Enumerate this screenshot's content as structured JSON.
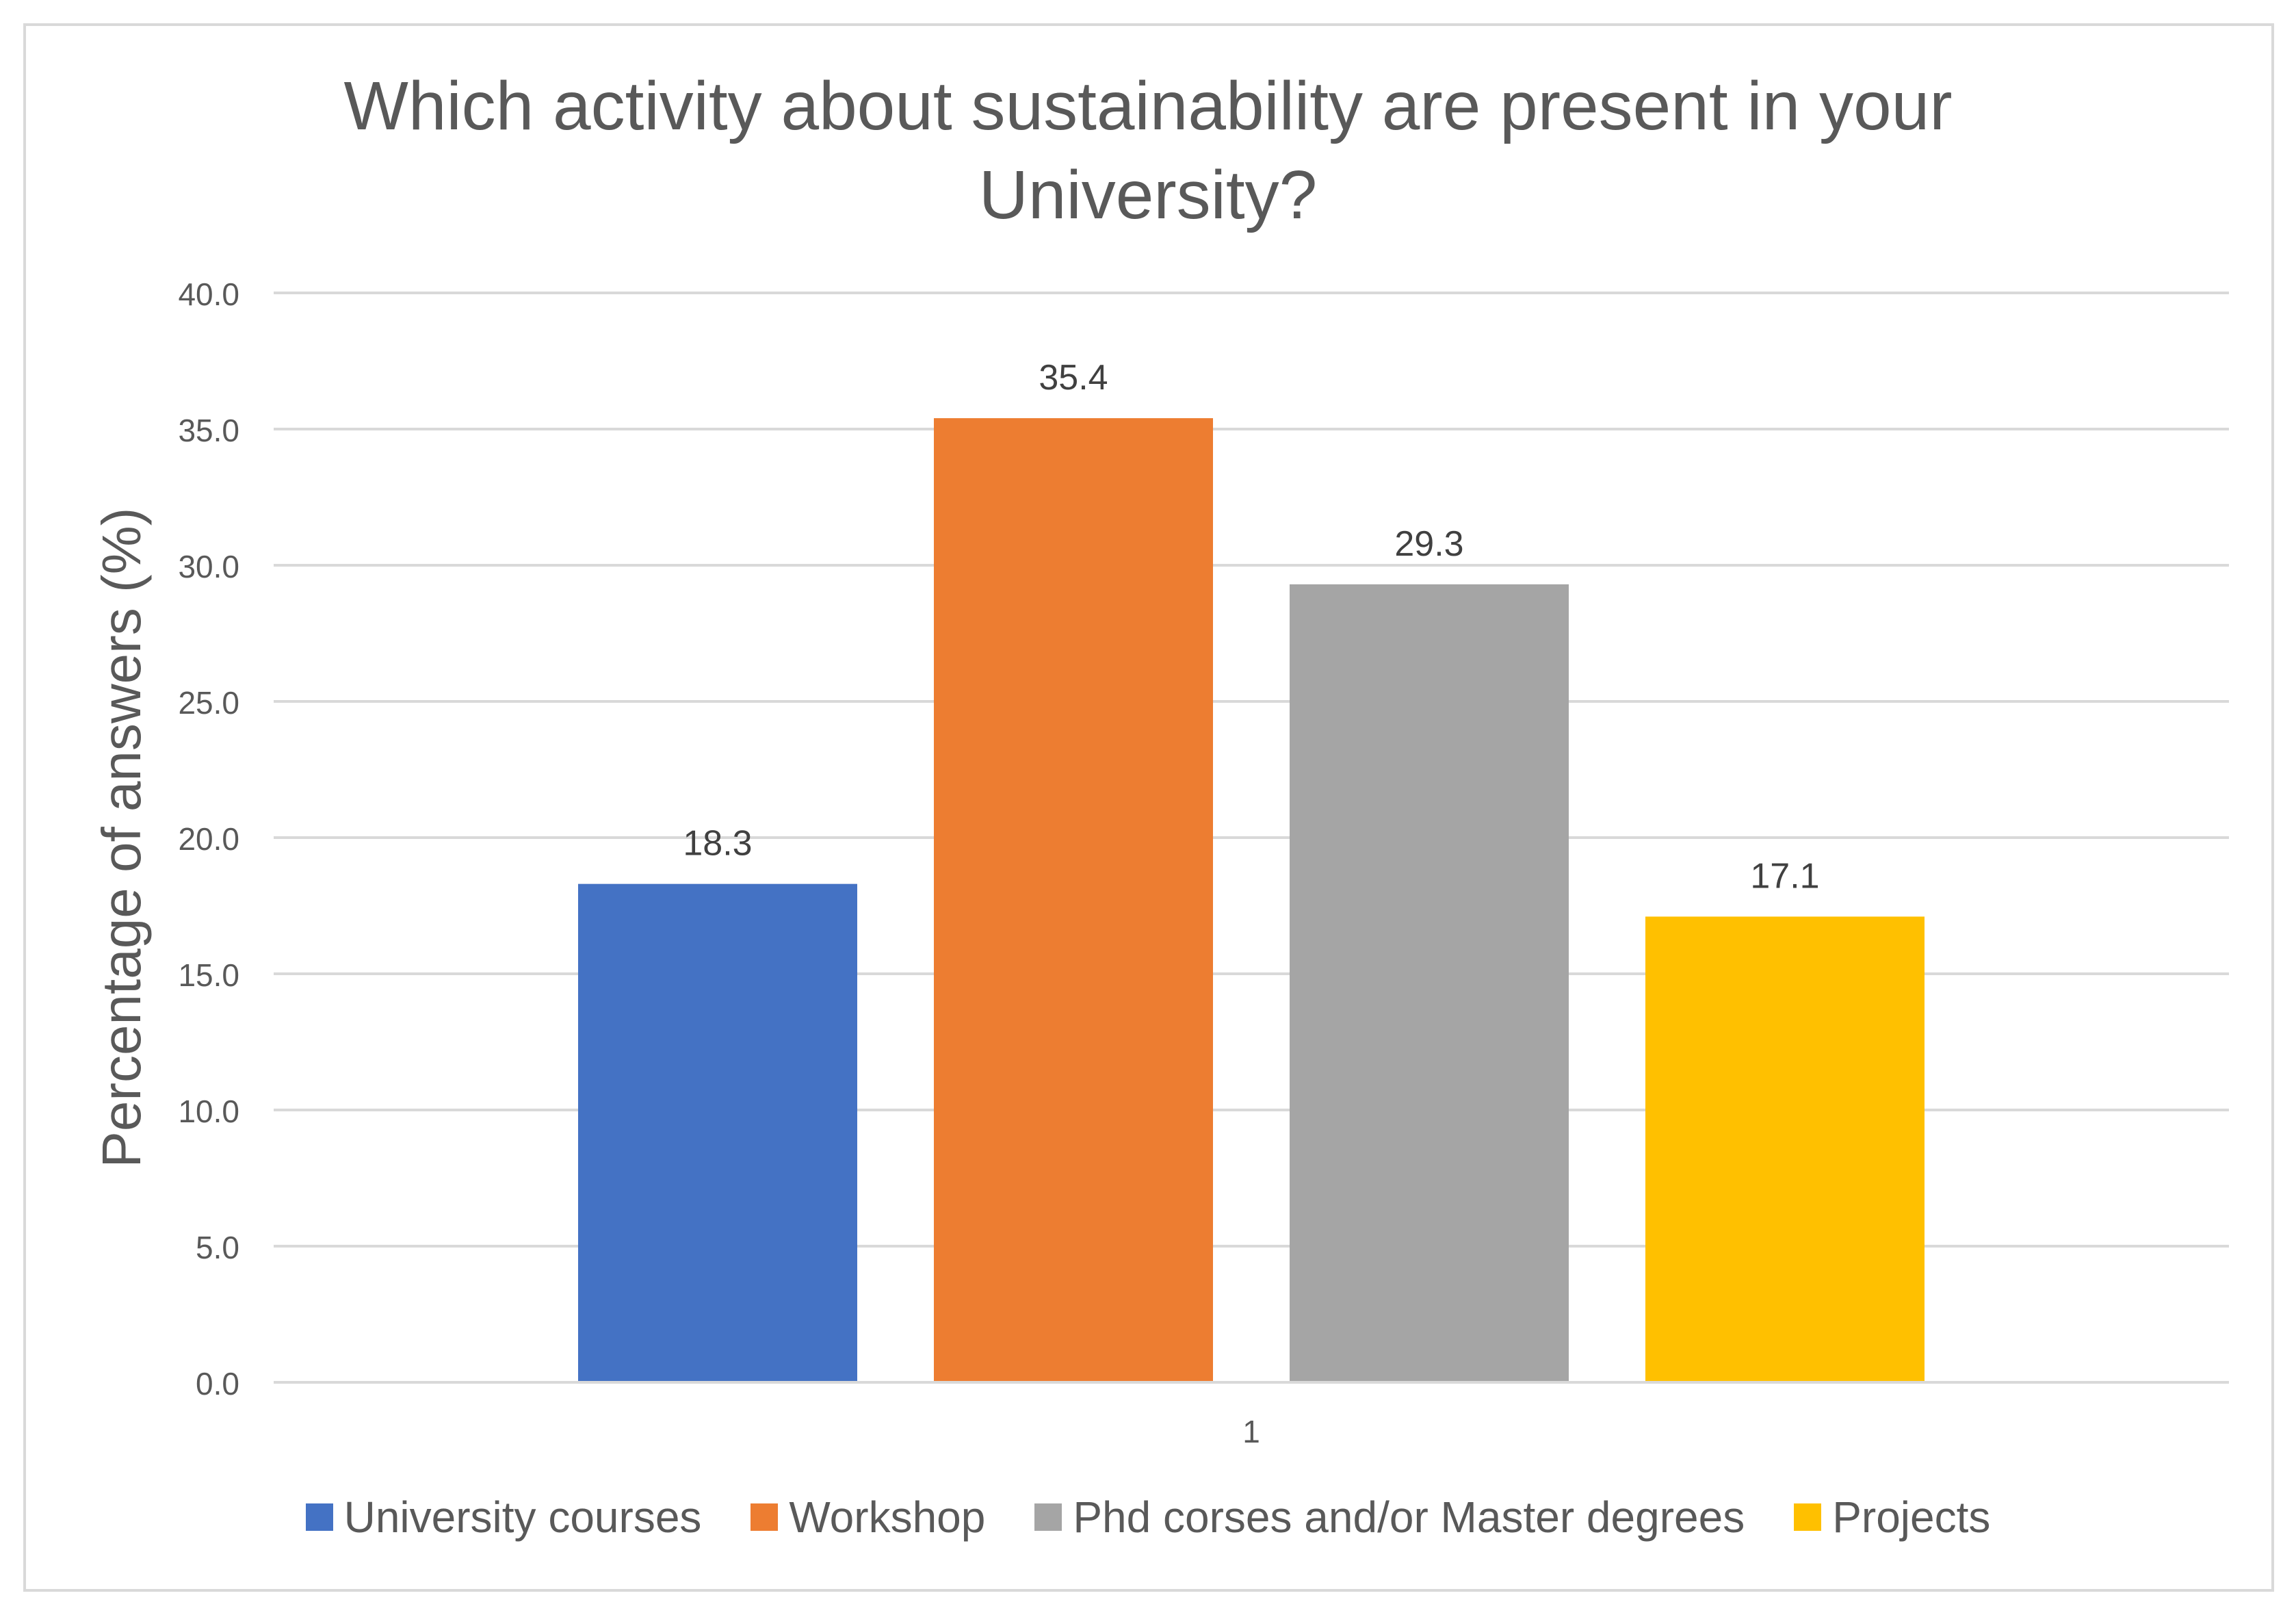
{
  "chart_data": {
    "type": "bar",
    "title": "Which activity about sustainability are present in your University?",
    "xlabel": "",
    "ylabel": "Percentage of answers (%)",
    "categories": [
      "1"
    ],
    "ylim": [
      0,
      40
    ],
    "yticks": [
      "0.0",
      "5.0",
      "10.0",
      "15.0",
      "20.0",
      "25.0",
      "30.0",
      "35.0",
      "40.0"
    ],
    "grid": true,
    "legend_position": "bottom",
    "series": [
      {
        "name": "University courses",
        "values": [
          18.3
        ],
        "label": "18.3",
        "color": "#4472C4"
      },
      {
        "name": "Workshop",
        "values": [
          35.4
        ],
        "label": "35.4",
        "color": "#ED7D31"
      },
      {
        "name": "Phd corses and/or Master degrees",
        "values": [
          29.3
        ],
        "label": "29.3",
        "color": "#A5A5A5"
      },
      {
        "name": "Projects",
        "values": [
          17.1
        ],
        "label": "17.1",
        "color": "#FFC000"
      }
    ]
  }
}
